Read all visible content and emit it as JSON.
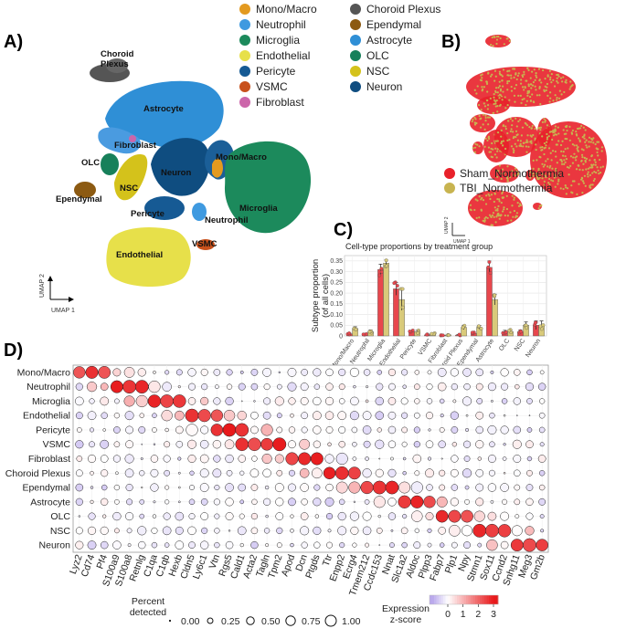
{
  "panel_labels": {
    "a": "A)",
    "b": "B)",
    "c": "C)",
    "d": "D)"
  },
  "umap": {
    "axis_x": "UMAP 1",
    "axis_y": "UMAP 2",
    "clusters": [
      {
        "name": "Choroid Plexus",
        "display": [
          "Choroid",
          "Plexus"
        ],
        "color": "#555555"
      },
      {
        "name": "Astrocyte",
        "display": [
          "Astrocyte"
        ],
        "color": "#2f8fd6"
      },
      {
        "name": "Fibroblast",
        "display": [
          "Fibroblast"
        ],
        "color": "#cc66aa"
      },
      {
        "name": "OLC",
        "display": [
          "OLC"
        ],
        "color": "#17805a"
      },
      {
        "name": "NSC",
        "display": [
          "NSC"
        ],
        "color": "#d4c21b"
      },
      {
        "name": "Neuron",
        "display": [
          "Neuron"
        ],
        "color": "#0f4d80"
      },
      {
        "name": "Mono/Macro",
        "display": [
          "Mono/Macro"
        ],
        "color": "#e39a20"
      },
      {
        "name": "Microglia",
        "display": [
          "Microglia"
        ],
        "color": "#1c8a5c"
      },
      {
        "name": "Ependymal",
        "display": [
          "Ependymal"
        ],
        "color": "#8c5a12"
      },
      {
        "name": "Pericyte",
        "display": [
          "Pericyte"
        ],
        "color": "#165a94"
      },
      {
        "name": "Neutrophil",
        "display": [
          "Neutrophil"
        ],
        "color": "#3f9ae0"
      },
      {
        "name": "Endothelial",
        "display": [
          "Endothelial"
        ],
        "color": "#e7e04a"
      },
      {
        "name": "VSMC",
        "display": [
          "VSMC"
        ],
        "color": "#c8511c"
      }
    ]
  },
  "cluster_legend": {
    "col1": [
      {
        "label": "Mono/Macro",
        "color": "#e39a20"
      },
      {
        "label": "Neutrophil",
        "color": "#3f9ae0"
      },
      {
        "label": "Microglia",
        "color": "#1c8a5c"
      },
      {
        "label": "Endothelial",
        "color": "#e7e04a"
      },
      {
        "label": "Pericyte",
        "color": "#165a94"
      },
      {
        "label": "VSMC",
        "color": "#c8511c"
      },
      {
        "label": "Fibroblast",
        "color": "#cc66aa"
      }
    ],
    "col2": [
      {
        "label": "Choroid Plexus",
        "color": "#555555"
      },
      {
        "label": "Ependymal",
        "color": "#8c5a12"
      },
      {
        "label": "Astrocyte",
        "color": "#2f8fd6"
      },
      {
        "label": "OLC",
        "color": "#17805a"
      },
      {
        "label": "NSC",
        "color": "#d4c21b"
      },
      {
        "label": "Neuron",
        "color": "#0f4d80"
      }
    ]
  },
  "condition_legend": [
    {
      "label": "Sham_Normothermia",
      "color": "#e8212a"
    },
    {
      "label": "TBI_Normothermia",
      "color": "#c8b450"
    }
  ],
  "chart_data": [
    {
      "type": "bar",
      "title": "Cell-type proportions by treatment group",
      "ylabel": "Subtype proportion\n(of all cells)",
      "xlabel": "",
      "ylim": [
        0,
        0.375
      ],
      "yticks": [
        0,
        0.05,
        0.1,
        0.15,
        0.2,
        0.25,
        0.3,
        0.35
      ],
      "ytick_labels": [
        "0",
        "0.05",
        "0.10",
        "0.15",
        "0.20",
        "0.25",
        "0.30",
        "0.35"
      ],
      "categories": [
        "Mono/Macro",
        "Neutrophil",
        "Microglia",
        "Endothelial",
        "Pericyte",
        "VSMC",
        "Fibroblast",
        "Choroid Plexus",
        "Ependymal",
        "Astrocyte",
        "OLC",
        "NSC",
        "Neuron"
      ],
      "series": [
        {
          "name": "Sham_Normothermia",
          "color": "#e8474d",
          "values": [
            0.01,
            0.008,
            0.31,
            0.22,
            0.02,
            0.005,
            0.003,
            0.004,
            0.012,
            0.32,
            0.02,
            0.02,
            0.05
          ],
          "errors": [
            0.003,
            0.003,
            0.025,
            0.03,
            0.005,
            0.002,
            0.001,
            0.002,
            0.004,
            0.03,
            0.006,
            0.008,
            0.02
          ]
        },
        {
          "name": "TBI_Normothermia",
          "color": "#d9ca7a",
          "values": [
            0.035,
            0.02,
            0.34,
            0.17,
            0.02,
            0.01,
            0.005,
            0.04,
            0.04,
            0.17,
            0.02,
            0.05,
            0.05
          ],
          "errors": [
            0.008,
            0.008,
            0.015,
            0.05,
            0.006,
            0.003,
            0.002,
            0.01,
            0.008,
            0.025,
            0.008,
            0.015,
            0.02
          ]
        }
      ]
    },
    {
      "type": "dotplot",
      "rows": [
        "Mono/Macro",
        "Neutrophil",
        "Microglia",
        "Endothelial",
        "Pericyte",
        "VSMC",
        "Fibroblast",
        "Choroid Plexus",
        "Ependymal",
        "Astrocyte",
        "OLC",
        "NSC",
        "Neuron"
      ],
      "genes": [
        "Lyz2",
        "Cd74",
        "Pf4",
        "S100a9",
        "S100a8",
        "Retnlg",
        "C1qa",
        "C1qb",
        "Hexb",
        "Cldn5",
        "Ly6c1",
        "Vtn",
        "Rgs5",
        "Cald1",
        "Acta2",
        "Tagln",
        "Tpm2",
        "Apod",
        "Dcn",
        "Ptgds",
        "Ttr",
        "Enpp2",
        "Ecrg4",
        "Tmem212",
        "Ccdc153",
        "Nnat",
        "Slc1a2",
        "Aldoc",
        "Plpp3",
        "Fabp7",
        "Plp1",
        "Npy",
        "Stmn1",
        "Sox11",
        "Ccnd2",
        "Snhg11",
        "Meg3",
        "Gm2b"
      ],
      "marker_genes": {
        "Mono/Macro": [
          0,
          1,
          2
        ],
        "Neutrophil": [
          3,
          4,
          5
        ],
        "Microglia": [
          6,
          7,
          8
        ],
        "Endothelial": [
          9,
          10,
          11
        ],
        "Pericyte": [
          11,
          12,
          13
        ],
        "VSMC": [
          13,
          14,
          15,
          16
        ],
        "Fibroblast": [
          17,
          18,
          19
        ],
        "Choroid Plexus": [
          20,
          21,
          22
        ],
        "Ependymal": [
          23,
          24,
          25
        ],
        "Astrocyte": [
          26,
          27,
          28
        ],
        "OLC": [
          29,
          30,
          31
        ],
        "NSC": [
          32,
          33,
          34
        ],
        "Neuron": [
          35,
          36,
          37
        ]
      },
      "size_legend": {
        "title": [
          "Percent",
          "detected"
        ],
        "values": [
          0.0,
          0.25,
          0.5,
          0.75,
          1.0
        ],
        "labels": [
          "0.00",
          "0.25",
          "0.50",
          "0.75",
          "1.00"
        ]
      },
      "color_legend": {
        "title": [
          "Expression",
          "z-score"
        ],
        "ticks": [
          0,
          1,
          2,
          3
        ],
        "tick_labels": [
          "0",
          "1",
          "2",
          "3"
        ],
        "low": "#b9a8ec",
        "mid": "#ffffff",
        "high": "#e8191b"
      }
    }
  ]
}
